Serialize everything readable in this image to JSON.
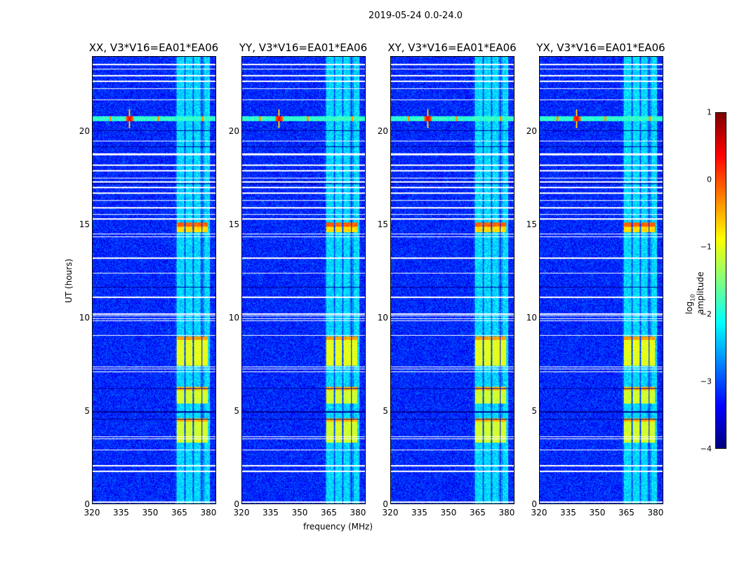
{
  "suptitle": "2019-05-24 0.0-24.0",
  "chart_data": {
    "type": "heatmap",
    "panels": [
      {
        "title": "XX, V3*V16=EA01*EA06"
      },
      {
        "title": "YY, V3*V16=EA01*EA06"
      },
      {
        "title": "XY, V3*V16=EA01*EA06"
      },
      {
        "title": "YX, V3*V16=EA01*EA06"
      }
    ],
    "xlabel": "frequency (MHz)",
    "ylabel": "UT (hours)",
    "xlim": [
      320,
      384
    ],
    "ylim": [
      0,
      24
    ],
    "xticks": [
      "320",
      "335",
      "350",
      "365",
      "380"
    ],
    "xtick_values": [
      320,
      335,
      350,
      365,
      380
    ],
    "yticks": [
      "0",
      "5",
      "10",
      "15",
      "20"
    ],
    "ytick_values": [
      0,
      5,
      10,
      15,
      20
    ],
    "colorbar": {
      "label": "log10 amplitude",
      "label_main": "log",
      "label_sub": "10",
      "label_rest": " amplitude",
      "range": [
        -4,
        1
      ],
      "ticks": [
        "1",
        "0",
        "−1",
        "−2",
        "−3",
        "−4"
      ],
      "tick_values": [
        1,
        0,
        -1,
        -2,
        -3,
        -4
      ],
      "colormap": "jet"
    },
    "background_level": -3.2,
    "band": {
      "freq_range": [
        363,
        381
      ],
      "level": -2.3
    },
    "strong_blocks": [
      [
        3.3,
        4.6,
        -1.1
      ],
      [
        5.4,
        6.3,
        -1.1
      ],
      [
        7.4,
        9.0,
        -1.0
      ],
      [
        14.6,
        15.1,
        -0.7
      ]
    ],
    "rfi_time": 20.7,
    "rfi_peaks_mhz": [
      339,
      329,
      354,
      377
    ],
    "flagged_times": [
      0.1,
      1.75,
      2.05,
      2.9,
      3.5,
      3.6,
      7.1,
      7.25,
      7.35,
      9.05,
      9.85,
      9.95,
      10.1,
      10.2,
      11.1,
      12.4,
      13.2,
      14.35,
      14.5,
      15.3,
      15.55,
      15.9,
      16.3,
      16.7,
      17.0,
      17.3,
      17.5,
      17.9,
      18.2,
      18.75,
      18.8,
      19.5,
      21.7,
      22.3,
      22.7,
      23.0,
      23.35,
      23.6
    ],
    "dropout_times": [
      4.55,
      4.95,
      6.2,
      11.65,
      17.2,
      19.2,
      20.05
    ]
  }
}
